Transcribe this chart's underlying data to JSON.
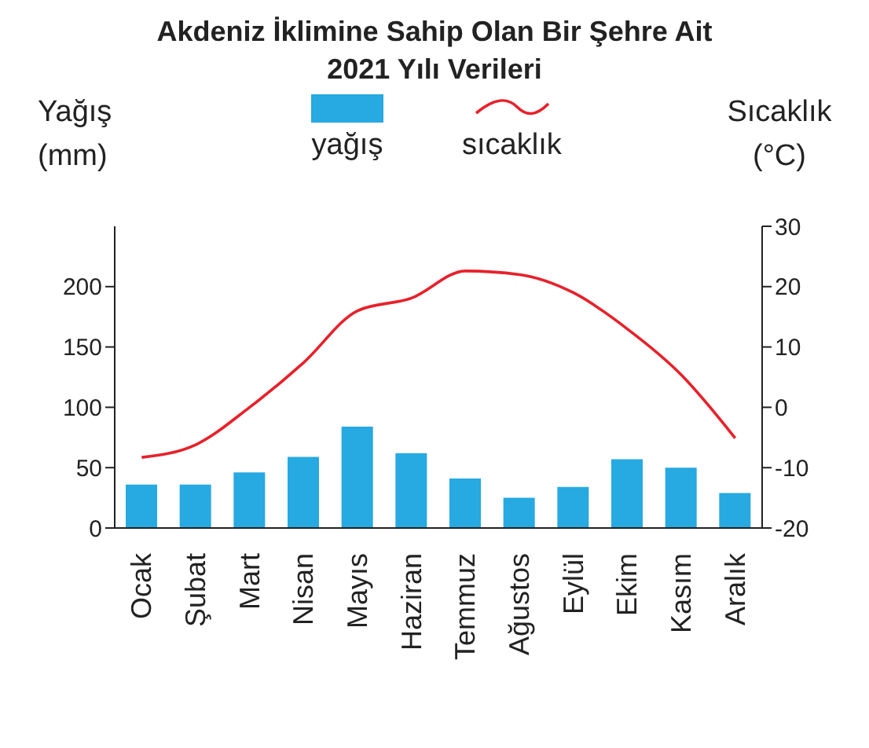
{
  "chart_data": {
    "type": "bar",
    "title": "Akdeniz İklimine Sahip Olan Bir Şehre Ait 2021 Yılı Verileri",
    "ylabel": "Yağış (mm)",
    "y2label": "Sıcaklık (°C)",
    "legend": "top",
    "categories": [
      "Ocak",
      "Şubat",
      "Mart",
      "Nisan",
      "Mayıs",
      "Haziran",
      "Temmuz",
      "Ağustos",
      "Eylül",
      "Ekim",
      "Kasım",
      "Aralık"
    ],
    "series": [
      {
        "name": "yağış",
        "color": "#27a9e1",
        "values": [
          36,
          36,
          46,
          59,
          84,
          62,
          41,
          25,
          34,
          57,
          50,
          29
        ]
      },
      {
        "name": "sıcaklık",
        "type": "line",
        "axis": "y2",
        "color": "#e8202a",
        "values": [
          -8.3,
          -6.2,
          0,
          7.4,
          16,
          18.1,
          22.6,
          22,
          19,
          13,
          5.4,
          -5.1
        ]
      }
    ],
    "ylim": [
      0,
      250
    ],
    "yticks": [
      0,
      50,
      100,
      150,
      200
    ],
    "y2lim": [
      -20,
      30
    ],
    "y2ticks": [
      -20,
      -10,
      0,
      10,
      20,
      30
    ]
  }
}
